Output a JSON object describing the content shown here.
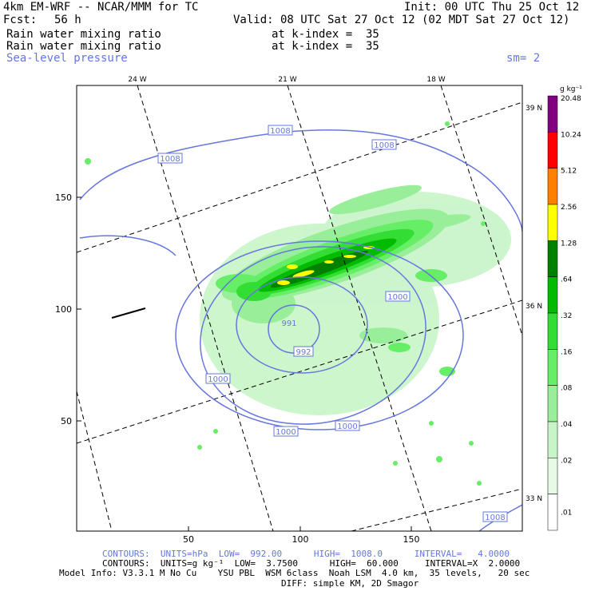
{
  "header": {
    "model": "4km EM-WRF -- NCAR/MMM for TC",
    "init": "Init: 00 UTC Thu 25 Oct 12",
    "fcst_label": "Fcst:",
    "fcst_value": "56 h",
    "valid": "Valid: 08 UTC Sat 27 Oct 12 (02 MDT Sat 27 Oct 12)",
    "field1_name": "Rain water mixing ratio",
    "field1_level": "at k-index =  35",
    "field2_name": "Rain water mixing ratio",
    "field2_level": "at k-index =  35",
    "field3_name": "Sea-level pressure",
    "field3_smooth": "sm= 2"
  },
  "colorbar": {
    "units": "g kg⁻¹",
    "levels": [
      {
        "label": "20.48",
        "color": "#800080"
      },
      {
        "label": "10.24",
        "color": "#ff0000"
      },
      {
        "label": "5.12",
        "color": "#ff8000"
      },
      {
        "label": "2.56",
        "color": "#ffff00"
      },
      {
        "label": "1.28",
        "color": "#008000"
      },
      {
        "label": ".64",
        "color": "#00bb00"
      },
      {
        "label": ".32",
        "color": "#33dd33"
      },
      {
        "label": ".16",
        "color": "#66ee66"
      },
      {
        "label": ".08",
        "color": "#99ee99"
      },
      {
        "label": ".04",
        "color": "#c8f5c8"
      },
      {
        "label": ".02",
        "color": "#e6fae6"
      },
      {
        "label": ".01",
        "color": "#ffffff"
      }
    ]
  },
  "axes": {
    "x_ticks": [
      "50",
      "100",
      "150"
    ],
    "y_ticks": [
      "50",
      "100",
      "150"
    ],
    "lon_labels": [
      "24 W",
      "21 W",
      "18 W"
    ],
    "lat_labels": [
      "39 N",
      "36 N",
      "33 N"
    ]
  },
  "contour_labels": [
    "1008",
    "1008",
    "1008",
    "1008",
    "1000",
    "1000",
    "1000",
    "1000",
    "992",
    "991"
  ],
  "footer": {
    "contours_slp": "CONTOURS:  UNITS=hPa  LOW=  992.00      HIGH=  1008.0      INTERVAL=   4.0000",
    "contours_rain": "CONTOURS:  UNITS=g kg⁻¹  LOW=  3.7500      HIGH=  60.000     INTERVAL=X  2.0000",
    "model_info": "Model Info: V3.3.1 M No Cu    YSU PBL  WSM 6class  Noah LSM  4.0 km,  35 levels,   20 sec",
    "diff_info": "DIFF: simple KM, 2D Smagor"
  }
}
